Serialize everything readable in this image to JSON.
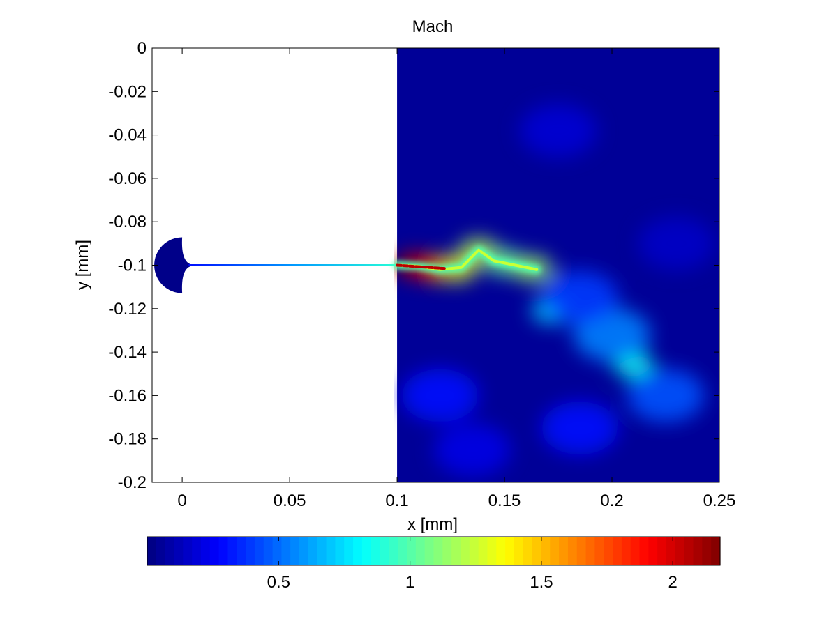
{
  "chart_data": {
    "type": "heatmap",
    "title": "Mach",
    "xlabel": "x [mm]",
    "ylabel": "y [mm]",
    "xlim": [
      -0.014,
      0.25
    ],
    "ylim": [
      -0.2,
      0
    ],
    "xticks": [
      0,
      0.05,
      0.1,
      0.15,
      0.2,
      0.25
    ],
    "xtick_labels": [
      "0",
      "0.05",
      "0.1",
      "0.15",
      "0.2",
      "0.25"
    ],
    "yticks": [
      0,
      -0.02,
      -0.04,
      -0.06,
      -0.08,
      -0.1,
      -0.12,
      -0.14,
      -0.16,
      -0.18,
      -0.2
    ],
    "ytick_labels": [
      "0",
      "-0.02",
      "-0.04",
      "-0.06",
      "-0.08",
      "-0.1",
      "-0.12",
      "-0.14",
      "-0.16",
      "-0.18",
      "-0.2"
    ],
    "colorbar": {
      "colormap": "jet",
      "orientation": "horizontal",
      "location": "below",
      "range": [
        0,
        2.18
      ],
      "ticks": [
        0.5,
        1,
        1.5,
        2
      ],
      "tick_labels": [
        "0.5",
        "1",
        "1.5",
        "2"
      ]
    },
    "grid": false,
    "regions": {
      "chamber": {
        "center_x": 0,
        "center_y": -0.1,
        "radius": 0.013,
        "mach": 0.02
      },
      "nozzle": {
        "x_start": 0.003,
        "x_end": 0.1,
        "y": -0.1,
        "mach_start": 0.3,
        "mach_end": 0.9
      },
      "plume_domain": {
        "x": [
          0.1,
          0.25
        ],
        "y": [
          -0.2,
          0
        ],
        "background_mach": 0.05
      }
    },
    "jet_path": [
      {
        "x": 0.1,
        "y": -0.1
      },
      {
        "x": 0.11,
        "y": -0.1005
      },
      {
        "x": 0.12,
        "y": -0.102
      },
      {
        "x": 0.13,
        "y": -0.101
      },
      {
        "x": 0.138,
        "y": -0.093
      },
      {
        "x": 0.145,
        "y": -0.098
      },
      {
        "x": 0.155,
        "y": -0.1
      },
      {
        "x": 0.165,
        "y": -0.102
      }
    ],
    "features": [
      {
        "x": 0.108,
        "y": -0.1,
        "mach": 2.1
      },
      {
        "x": 0.118,
        "y": -0.1015,
        "mach": 1.9
      },
      {
        "x": 0.128,
        "y": -0.1015,
        "mach": 1.3
      },
      {
        "x": 0.138,
        "y": -0.0935,
        "mach": 1.2
      },
      {
        "x": 0.15,
        "y": -0.0985,
        "mach": 1.05
      },
      {
        "x": 0.163,
        "y": -0.1015,
        "mach": 1.15
      },
      {
        "x": 0.172,
        "y": -0.121,
        "mach": 0.75
      },
      {
        "x": 0.21,
        "y": -0.146,
        "mach": 0.85
      },
      {
        "x": 0.2,
        "y": -0.132,
        "mach": 0.55
      },
      {
        "x": 0.225,
        "y": -0.16,
        "mach": 0.45
      },
      {
        "x": 0.185,
        "y": -0.115,
        "mach": 0.4
      },
      {
        "x": 0.175,
        "y": -0.038,
        "mach": 0.18
      },
      {
        "x": 0.12,
        "y": -0.16,
        "mach": 0.3
      },
      {
        "x": 0.135,
        "y": -0.185,
        "mach": 0.22
      },
      {
        "x": 0.185,
        "y": -0.175,
        "mach": 0.3
      },
      {
        "x": 0.23,
        "y": -0.09,
        "mach": 0.15
      }
    ]
  }
}
